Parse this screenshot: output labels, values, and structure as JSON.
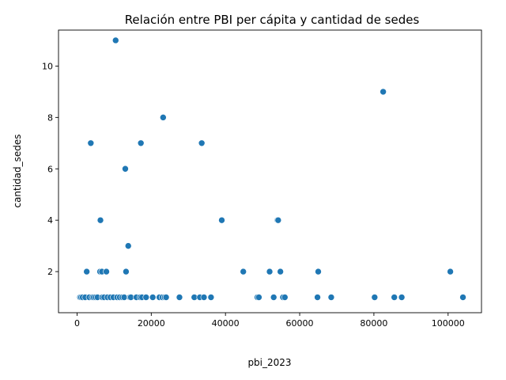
{
  "chart_data": {
    "type": "scatter",
    "title": "Relación entre PBI per cápita y cantidad de sedes",
    "xlabel": "pbi_2023",
    "ylabel": "cantidad_sedes",
    "xlim": [
      -5000,
      109000
    ],
    "ylim": [
      0.4,
      11.4
    ],
    "xticks": [
      0,
      20000,
      40000,
      60000,
      80000,
      100000
    ],
    "yticks": [
      2,
      4,
      6,
      8,
      10
    ],
    "grid": false,
    "color": "#1f77b4",
    "points": [
      {
        "x": 800,
        "y": 1
      },
      {
        "x": 1100,
        "y": 1
      },
      {
        "x": 1500,
        "y": 1
      },
      {
        "x": 2200,
        "y": 1
      },
      {
        "x": 2600,
        "y": 2
      },
      {
        "x": 3300,
        "y": 1
      },
      {
        "x": 3700,
        "y": 7
      },
      {
        "x": 4100,
        "y": 1
      },
      {
        "x": 4500,
        "y": 1
      },
      {
        "x": 5000,
        "y": 1
      },
      {
        "x": 5500,
        "y": 1
      },
      {
        "x": 6200,
        "y": 2
      },
      {
        "x": 6300,
        "y": 4
      },
      {
        "x": 6700,
        "y": 2
      },
      {
        "x": 6800,
        "y": 1
      },
      {
        "x": 7300,
        "y": 1
      },
      {
        "x": 7900,
        "y": 2
      },
      {
        "x": 8200,
        "y": 1
      },
      {
        "x": 9000,
        "y": 1
      },
      {
        "x": 9800,
        "y": 1
      },
      {
        "x": 10400,
        "y": 11
      },
      {
        "x": 10800,
        "y": 1
      },
      {
        "x": 11500,
        "y": 1
      },
      {
        "x": 12200,
        "y": 1
      },
      {
        "x": 12700,
        "y": 1
      },
      {
        "x": 13000,
        "y": 6
      },
      {
        "x": 13200,
        "y": 2
      },
      {
        "x": 13800,
        "y": 3
      },
      {
        "x": 14200,
        "y": 1
      },
      {
        "x": 14500,
        "y": 1
      },
      {
        "x": 16000,
        "y": 1
      },
      {
        "x": 17000,
        "y": 1
      },
      {
        "x": 17200,
        "y": 7
      },
      {
        "x": 17500,
        "y": 1
      },
      {
        "x": 18600,
        "y": 1
      },
      {
        "x": 20400,
        "y": 1
      },
      {
        "x": 22200,
        "y": 1
      },
      {
        "x": 23000,
        "y": 1
      },
      {
        "x": 23200,
        "y": 8
      },
      {
        "x": 23600,
        "y": 1
      },
      {
        "x": 24000,
        "y": 1
      },
      {
        "x": 27600,
        "y": 1
      },
      {
        "x": 31600,
        "y": 1
      },
      {
        "x": 33100,
        "y": 1
      },
      {
        "x": 33600,
        "y": 7
      },
      {
        "x": 34200,
        "y": 1
      },
      {
        "x": 36100,
        "y": 1
      },
      {
        "x": 39000,
        "y": 4
      },
      {
        "x": 44800,
        "y": 2
      },
      {
        "x": 48600,
        "y": 1
      },
      {
        "x": 49000,
        "y": 1
      },
      {
        "x": 51900,
        "y": 2
      },
      {
        "x": 53000,
        "y": 1
      },
      {
        "x": 54000,
        "y": 4
      },
      {
        "x": 54200,
        "y": 4
      },
      {
        "x": 54800,
        "y": 2
      },
      {
        "x": 55500,
        "y": 1
      },
      {
        "x": 56000,
        "y": 1
      },
      {
        "x": 64800,
        "y": 1
      },
      {
        "x": 65000,
        "y": 2
      },
      {
        "x": 68500,
        "y": 1
      },
      {
        "x": 80200,
        "y": 1
      },
      {
        "x": 82500,
        "y": 9
      },
      {
        "x": 85500,
        "y": 1
      },
      {
        "x": 87500,
        "y": 1
      },
      {
        "x": 100600,
        "y": 2
      },
      {
        "x": 104000,
        "y": 1
      }
    ]
  }
}
